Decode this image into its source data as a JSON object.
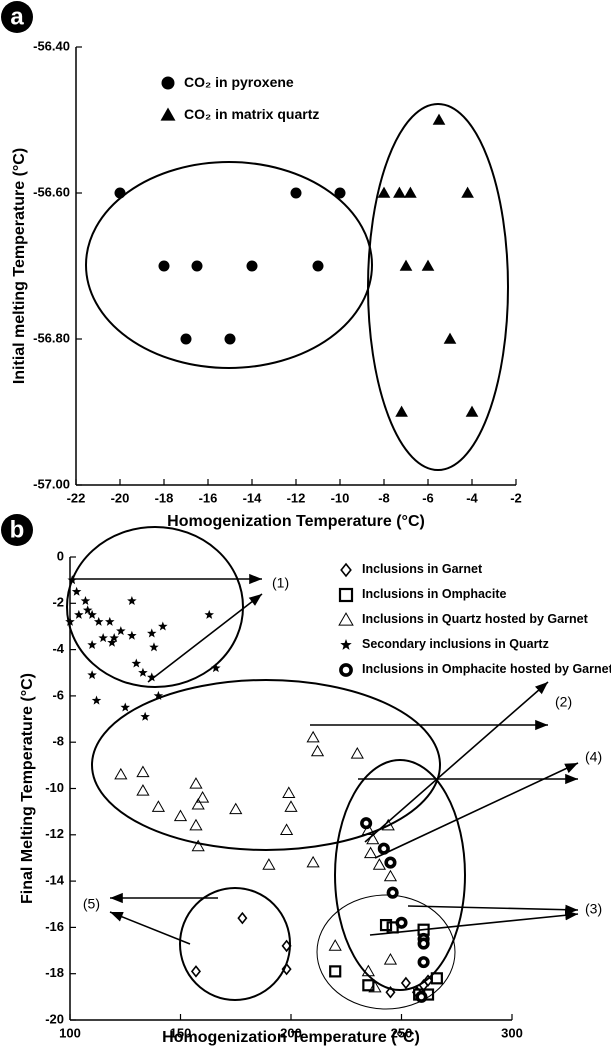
{
  "chart_data": [
    {
      "type": "scatter",
      "panel": "a",
      "xlabel": "Homogenization Temperature (°C)",
      "ylabel": "Initial melting Temperature (°C)",
      "xlim": [
        -22,
        -2
      ],
      "xticks": [
        -22,
        -20,
        -18,
        -16,
        -14,
        -12,
        -10,
        -8,
        -6,
        -4,
        -2
      ],
      "ylim": [
        -57.0,
        -56.4
      ],
      "yticks": [
        {
          "value": -57.0,
          "label": "-57.00"
        },
        {
          "value": -56.8,
          "label": "-56.80"
        },
        {
          "value": -56.6,
          "label": "-56.60"
        },
        {
          "value": -56.4,
          "label": "-56.40"
        }
      ],
      "legend": "upper left",
      "series": [
        {
          "name": "CO₂ in pyroxene",
          "color": "#000000",
          "marker": "circle",
          "x": [
            -20,
            -12,
            -10,
            -18,
            -16.5,
            -14,
            -11,
            -17,
            -15
          ],
          "values": [
            -56.6,
            -56.6,
            -56.6,
            -56.7,
            -56.7,
            -56.7,
            -56.7,
            -56.8,
            -56.8
          ]
        },
        {
          "name": "CO₂ in matrix quartz",
          "color": "#000000",
          "marker": "triangle",
          "x": [
            -5.5,
            -8,
            -7.3,
            -6.8,
            -4.2,
            -7,
            -6,
            -5,
            -7.2,
            -4
          ],
          "values": [
            -56.5,
            -56.6,
            -56.6,
            -56.6,
            -56.6,
            -56.7,
            -56.7,
            -56.8,
            -56.9,
            -56.9
          ]
        }
      ]
    },
    {
      "type": "scatter",
      "panel": "b",
      "xlabel": "Homogenization Temperature (°C)",
      "ylabel": "Final Melting Temperature (°C)",
      "xlim": [
        100,
        300
      ],
      "xticks": [
        100,
        150,
        200,
        250,
        300
      ],
      "ylim": [
        -20,
        0
      ],
      "yticks": [
        -20,
        -18,
        -16,
        -14,
        -12,
        -10,
        -8,
        -6,
        -4,
        -2,
        0
      ],
      "legend": "upper right",
      "annotations": [
        "(1)",
        "(2)",
        "(3)",
        "(4)",
        "(5)"
      ],
      "series": [
        {
          "name": "Inclusions in Garnet",
          "color": "#000000",
          "marker": "diamond-open",
          "x": [
            178,
            198,
            198,
            157,
            245,
            252,
            257,
            260,
            262
          ],
          "values": [
            -15.6,
            -16.8,
            -17.8,
            -17.9,
            -18.8,
            -18.4,
            -18.8,
            -18.5,
            -18.3
          ]
        },
        {
          "name": "Inclusions in Omphacite",
          "color": "#000000",
          "marker": "square-open",
          "x": [
            220,
            235,
            243,
            246,
            260,
            266,
            258,
            262
          ],
          "values": [
            -17.9,
            -18.5,
            -15.9,
            -16.0,
            -16.1,
            -18.2,
            -18.9,
            -18.9
          ]
        },
        {
          "name": "Inclusions in Quartz hosted by Garnet",
          "color": "#000000",
          "marker": "triangle-open",
          "x": [
            123,
            133,
            133,
            140,
            150,
            157,
            158,
            160,
            157,
            158,
            175,
            190,
            199,
            200,
            198,
            210,
            210,
            212,
            230,
            235,
            237,
            240,
            244,
            245,
            236,
            220,
            235,
            238,
            245
          ],
          "values": [
            -9.4,
            -9.3,
            -10.1,
            -10.8,
            -11.2,
            -9.8,
            -10.7,
            -10.4,
            -11.6,
            -12.5,
            -10.9,
            -13.3,
            -10.2,
            -10.8,
            -11.8,
            -13.2,
            -7.8,
            -8.4,
            -8.5,
            -11.8,
            -12.2,
            -13.3,
            -11.6,
            -13.8,
            -12.8,
            -16.8,
            -17.9,
            -18.6,
            -17.4
          ]
        },
        {
          "name": "Secondary inclusions in Quartz",
          "color": "#000000",
          "marker": "star",
          "x": [
            101,
            103,
            100,
            104,
            108,
            110,
            113,
            118,
            115,
            119,
            120,
            110,
            123,
            128,
            128,
            130,
            137,
            142,
            138,
            133,
            110,
            112,
            125,
            137,
            140,
            134,
            163,
            166,
            107
          ],
          "values": [
            -1.0,
            -1.5,
            -2.8,
            -2.5,
            -2.3,
            -2.5,
            -2.8,
            -2.8,
            -3.5,
            -3.7,
            -3.5,
            -3.8,
            -3.2,
            -1.9,
            -3.4,
            -4.6,
            -3.3,
            -3.0,
            -3.9,
            -5.0,
            -5.1,
            -6.2,
            -6.5,
            -5.2,
            -6.0,
            -6.9,
            -2.5,
            -4.8,
            -1.9
          ]
        },
        {
          "name": "Inclusions in Omphacite hosted by Garnet",
          "color": "#000000",
          "marker": "ring",
          "x": [
            234,
            242,
            245,
            246,
            250,
            260,
            260,
            260,
            259
          ],
          "values": [
            -11.5,
            -12.6,
            -13.2,
            -14.5,
            -15.8,
            -16.5,
            -16.7,
            -17.5,
            -19.0
          ]
        }
      ]
    }
  ]
}
